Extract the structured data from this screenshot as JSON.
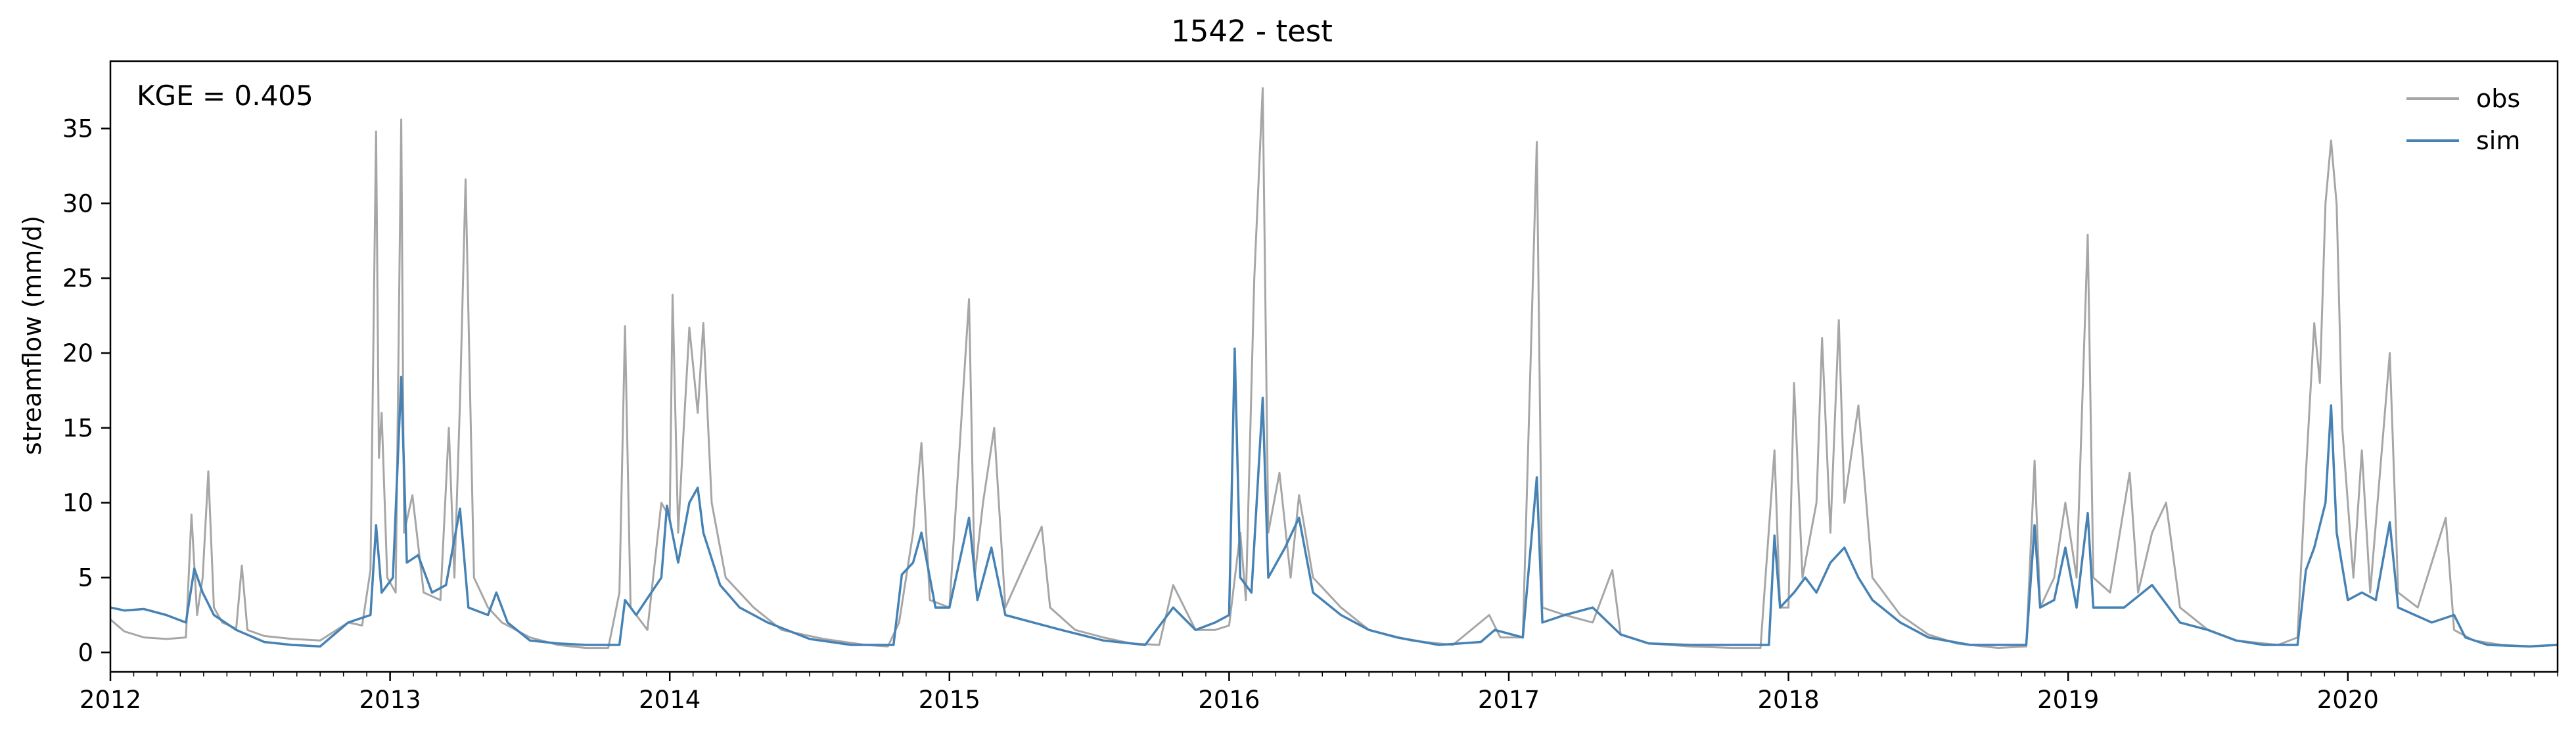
{
  "chart_data": {
    "type": "line",
    "title": "1542 - test",
    "xlabel": "",
    "ylabel": "streamflow (mm/d)",
    "annotation": "KGE = 0.405",
    "xlim": [
      2012.0,
      2020.75
    ],
    "ylim": [
      -1.3,
      39.5
    ],
    "x_ticks": [
      2012,
      2013,
      2014,
      2015,
      2016,
      2017,
      2018,
      2019,
      2020
    ],
    "x_tick_labels": [
      "2012",
      "2013",
      "2014",
      "2015",
      "2016",
      "2017",
      "2018",
      "2019",
      "2020"
    ],
    "y_ticks": [
      0,
      5,
      10,
      15,
      20,
      25,
      30,
      35
    ],
    "y_tick_labels": [
      "0",
      "5",
      "10",
      "15",
      "20",
      "25",
      "30",
      "35"
    ],
    "grid": false,
    "legend_position": "top-right",
    "series": [
      {
        "name": "obs",
        "color": "#a6a6a6",
        "points": [
          [
            2012.0,
            2.2
          ],
          [
            2012.05,
            1.4
          ],
          [
            2012.12,
            1.0
          ],
          [
            2012.2,
            0.9
          ],
          [
            2012.27,
            1.0
          ],
          [
            2012.29,
            9.2
          ],
          [
            2012.31,
            2.5
          ],
          [
            2012.33,
            5.0
          ],
          [
            2012.35,
            12.1
          ],
          [
            2012.37,
            3.0
          ],
          [
            2012.4,
            2.0
          ],
          [
            2012.45,
            1.6
          ],
          [
            2012.47,
            5.8
          ],
          [
            2012.49,
            1.5
          ],
          [
            2012.55,
            1.1
          ],
          [
            2012.65,
            0.9
          ],
          [
            2012.75,
            0.8
          ],
          [
            2012.85,
            2.0
          ],
          [
            2012.9,
            1.8
          ],
          [
            2012.93,
            5.5
          ],
          [
            2012.95,
            34.8
          ],
          [
            2012.96,
            13.0
          ],
          [
            2012.97,
            16.0
          ],
          [
            2012.99,
            5.0
          ],
          [
            2013.02,
            4.0
          ],
          [
            2013.04,
            35.6
          ],
          [
            2013.05,
            8.0
          ],
          [
            2013.08,
            10.5
          ],
          [
            2013.12,
            4.0
          ],
          [
            2013.18,
            3.5
          ],
          [
            2013.21,
            15.0
          ],
          [
            2013.23,
            5.0
          ],
          [
            2013.25,
            16.8
          ],
          [
            2013.27,
            31.6
          ],
          [
            2013.3,
            5.0
          ],
          [
            2013.35,
            3.0
          ],
          [
            2013.4,
            2.0
          ],
          [
            2013.45,
            1.5
          ],
          [
            2013.5,
            1.0
          ],
          [
            2013.6,
            0.5
          ],
          [
            2013.7,
            0.3
          ],
          [
            2013.78,
            0.3
          ],
          [
            2013.82,
            4.0
          ],
          [
            2013.84,
            21.8
          ],
          [
            2013.86,
            3.0
          ],
          [
            2013.92,
            1.5
          ],
          [
            2013.97,
            10.0
          ],
          [
            2014.0,
            9.0
          ],
          [
            2014.01,
            23.9
          ],
          [
            2014.03,
            8.0
          ],
          [
            2014.05,
            15.0
          ],
          [
            2014.07,
            21.7
          ],
          [
            2014.1,
            16.0
          ],
          [
            2014.12,
            22.0
          ],
          [
            2014.15,
            10.0
          ],
          [
            2014.2,
            5.0
          ],
          [
            2014.3,
            3.0
          ],
          [
            2014.4,
            1.5
          ],
          [
            2014.55,
            0.9
          ],
          [
            2014.7,
            0.5
          ],
          [
            2014.78,
            0.4
          ],
          [
            2014.82,
            2.0
          ],
          [
            2014.87,
            8.0
          ],
          [
            2014.9,
            14.0
          ],
          [
            2014.93,
            3.5
          ],
          [
            2015.0,
            3.0
          ],
          [
            2015.07,
            23.6
          ],
          [
            2015.09,
            5.0
          ],
          [
            2015.12,
            10.0
          ],
          [
            2015.16,
            15.0
          ],
          [
            2015.2,
            3.0
          ],
          [
            2015.33,
            8.4
          ],
          [
            2015.36,
            3.0
          ],
          [
            2015.45,
            1.5
          ],
          [
            2015.55,
            1.0
          ],
          [
            2015.65,
            0.6
          ],
          [
            2015.75,
            0.5
          ],
          [
            2015.8,
            4.5
          ],
          [
            2015.88,
            1.5
          ],
          [
            2015.95,
            1.5
          ],
          [
            2016.0,
            1.8
          ],
          [
            2016.04,
            8.0
          ],
          [
            2016.06,
            3.5
          ],
          [
            2016.09,
            25.0
          ],
          [
            2016.12,
            37.7
          ],
          [
            2016.14,
            8.0
          ],
          [
            2016.18,
            12.0
          ],
          [
            2016.22,
            5.0
          ],
          [
            2016.25,
            10.5
          ],
          [
            2016.3,
            5.0
          ],
          [
            2016.4,
            3.0
          ],
          [
            2016.5,
            1.5
          ],
          [
            2016.65,
            0.8
          ],
          [
            2016.8,
            0.5
          ],
          [
            2016.93,
            2.5
          ],
          [
            2016.97,
            1.0
          ],
          [
            2017.05,
            1.0
          ],
          [
            2017.1,
            34.1
          ],
          [
            2017.12,
            3.0
          ],
          [
            2017.2,
            2.5
          ],
          [
            2017.3,
            2.0
          ],
          [
            2017.37,
            5.5
          ],
          [
            2017.4,
            1.2
          ],
          [
            2017.5,
            0.6
          ],
          [
            2017.65,
            0.4
          ],
          [
            2017.8,
            0.3
          ],
          [
            2017.9,
            0.3
          ],
          [
            2017.95,
            13.5
          ],
          [
            2017.97,
            3.0
          ],
          [
            2018.0,
            3.0
          ],
          [
            2018.02,
            18.0
          ],
          [
            2018.05,
            5.0
          ],
          [
            2018.1,
            10.0
          ],
          [
            2018.12,
            21.0
          ],
          [
            2018.15,
            8.0
          ],
          [
            2018.18,
            22.2
          ],
          [
            2018.2,
            10.0
          ],
          [
            2018.25,
            16.5
          ],
          [
            2018.3,
            5.0
          ],
          [
            2018.4,
            2.5
          ],
          [
            2018.5,
            1.2
          ],
          [
            2018.6,
            0.6
          ],
          [
            2018.75,
            0.3
          ],
          [
            2018.85,
            0.4
          ],
          [
            2018.88,
            12.8
          ],
          [
            2018.9,
            3.0
          ],
          [
            2018.95,
            5.0
          ],
          [
            2018.99,
            10.0
          ],
          [
            2019.03,
            5.0
          ],
          [
            2019.07,
            27.9
          ],
          [
            2019.09,
            5.0
          ],
          [
            2019.15,
            4.0
          ],
          [
            2019.22,
            12.0
          ],
          [
            2019.25,
            4.0
          ],
          [
            2019.3,
            8.0
          ],
          [
            2019.35,
            10.0
          ],
          [
            2019.4,
            3.0
          ],
          [
            2019.5,
            1.5
          ],
          [
            2019.6,
            0.8
          ],
          [
            2019.75,
            0.5
          ],
          [
            2019.82,
            1.0
          ],
          [
            2019.85,
            12.0
          ],
          [
            2019.88,
            22.0
          ],
          [
            2019.9,
            18.0
          ],
          [
            2019.92,
            30.0
          ],
          [
            2019.94,
            34.2
          ],
          [
            2019.96,
            29.9
          ],
          [
            2019.98,
            15.0
          ],
          [
            2020.02,
            5.0
          ],
          [
            2020.05,
            13.5
          ],
          [
            2020.08,
            4.0
          ],
          [
            2020.15,
            20.0
          ],
          [
            2020.18,
            4.0
          ],
          [
            2020.25,
            3.0
          ],
          [
            2020.35,
            9.0
          ],
          [
            2020.38,
            1.5
          ],
          [
            2020.45,
            0.8
          ],
          [
            2020.55,
            0.5
          ],
          [
            2020.65,
            0.4
          ],
          [
            2020.75,
            0.5
          ]
        ]
      },
      {
        "name": "sim",
        "color": "#4682b4",
        "points": [
          [
            2012.0,
            3.0
          ],
          [
            2012.05,
            2.8
          ],
          [
            2012.12,
            2.9
          ],
          [
            2012.2,
            2.5
          ],
          [
            2012.27,
            2.0
          ],
          [
            2012.3,
            5.6
          ],
          [
            2012.33,
            4.0
          ],
          [
            2012.37,
            2.5
          ],
          [
            2012.45,
            1.5
          ],
          [
            2012.55,
            0.7
          ],
          [
            2012.65,
            0.5
          ],
          [
            2012.75,
            0.4
          ],
          [
            2012.85,
            2.0
          ],
          [
            2012.93,
            2.5
          ],
          [
            2012.95,
            8.5
          ],
          [
            2012.97,
            4.0
          ],
          [
            2013.01,
            5.0
          ],
          [
            2013.04,
            18.4
          ],
          [
            2013.06,
            6.0
          ],
          [
            2013.1,
            6.5
          ],
          [
            2013.15,
            4.0
          ],
          [
            2013.2,
            4.5
          ],
          [
            2013.25,
            9.6
          ],
          [
            2013.28,
            3.0
          ],
          [
            2013.35,
            2.5
          ],
          [
            2013.38,
            4.0
          ],
          [
            2013.42,
            2.0
          ],
          [
            2013.5,
            0.8
          ],
          [
            2013.6,
            0.6
          ],
          [
            2013.7,
            0.5
          ],
          [
            2013.82,
            0.5
          ],
          [
            2013.84,
            3.5
          ],
          [
            2013.88,
            2.5
          ],
          [
            2013.97,
            5.0
          ],
          [
            2013.99,
            9.8
          ],
          [
            2014.03,
            6.0
          ],
          [
            2014.07,
            10.0
          ],
          [
            2014.1,
            11.0
          ],
          [
            2014.12,
            8.0
          ],
          [
            2014.18,
            4.5
          ],
          [
            2014.25,
            3.0
          ],
          [
            2014.35,
            2.0
          ],
          [
            2014.5,
            0.9
          ],
          [
            2014.65,
            0.5
          ],
          [
            2014.8,
            0.5
          ],
          [
            2014.83,
            5.2
          ],
          [
            2014.87,
            6.0
          ],
          [
            2014.9,
            8.0
          ],
          [
            2014.95,
            3.0
          ],
          [
            2015.0,
            3.0
          ],
          [
            2015.07,
            9.0
          ],
          [
            2015.1,
            3.5
          ],
          [
            2015.15,
            7.0
          ],
          [
            2015.2,
            2.5
          ],
          [
            2015.3,
            2.0
          ],
          [
            2015.4,
            1.5
          ],
          [
            2015.55,
            0.8
          ],
          [
            2015.7,
            0.5
          ],
          [
            2015.8,
            3.0
          ],
          [
            2015.88,
            1.5
          ],
          [
            2015.95,
            2.0
          ],
          [
            2016.0,
            2.5
          ],
          [
            2016.02,
            20.3
          ],
          [
            2016.04,
            5.0
          ],
          [
            2016.08,
            4.0
          ],
          [
            2016.12,
            17.0
          ],
          [
            2016.14,
            5.0
          ],
          [
            2016.2,
            7.0
          ],
          [
            2016.25,
            9.0
          ],
          [
            2016.3,
            4.0
          ],
          [
            2016.4,
            2.5
          ],
          [
            2016.5,
            1.5
          ],
          [
            2016.6,
            1.0
          ],
          [
            2016.75,
            0.5
          ],
          [
            2016.9,
            0.7
          ],
          [
            2016.95,
            1.5
          ],
          [
            2017.05,
            1.0
          ],
          [
            2017.1,
            11.7
          ],
          [
            2017.12,
            2.0
          ],
          [
            2017.2,
            2.5
          ],
          [
            2017.3,
            3.0
          ],
          [
            2017.4,
            1.2
          ],
          [
            2017.5,
            0.6
          ],
          [
            2017.65,
            0.5
          ],
          [
            2017.8,
            0.5
          ],
          [
            2017.93,
            0.5
          ],
          [
            2017.95,
            7.8
          ],
          [
            2017.97,
            3.0
          ],
          [
            2018.02,
            4.0
          ],
          [
            2018.06,
            5.0
          ],
          [
            2018.1,
            4.0
          ],
          [
            2018.15,
            6.0
          ],
          [
            2018.2,
            7.0
          ],
          [
            2018.25,
            5.0
          ],
          [
            2018.3,
            3.5
          ],
          [
            2018.4,
            2.0
          ],
          [
            2018.5,
            1.0
          ],
          [
            2018.65,
            0.5
          ],
          [
            2018.85,
            0.5
          ],
          [
            2018.88,
            8.5
          ],
          [
            2018.9,
            3.0
          ],
          [
            2018.95,
            3.5
          ],
          [
            2018.99,
            7.0
          ],
          [
            2019.03,
            3.0
          ],
          [
            2019.07,
            9.3
          ],
          [
            2019.09,
            3.0
          ],
          [
            2019.2,
            3.0
          ],
          [
            2019.3,
            4.5
          ],
          [
            2019.4,
            2.0
          ],
          [
            2019.5,
            1.5
          ],
          [
            2019.6,
            0.8
          ],
          [
            2019.7,
            0.5
          ],
          [
            2019.82,
            0.5
          ],
          [
            2019.85,
            5.5
          ],
          [
            2019.88,
            7.0
          ],
          [
            2019.92,
            10.0
          ],
          [
            2019.94,
            16.5
          ],
          [
            2019.96,
            8.0
          ],
          [
            2020.0,
            3.5
          ],
          [
            2020.05,
            4.0
          ],
          [
            2020.1,
            3.5
          ],
          [
            2020.15,
            8.7
          ],
          [
            2020.18,
            3.0
          ],
          [
            2020.3,
            2.0
          ],
          [
            2020.38,
            2.5
          ],
          [
            2020.42,
            1.0
          ],
          [
            2020.5,
            0.5
          ],
          [
            2020.65,
            0.4
          ],
          [
            2020.75,
            0.5
          ]
        ]
      }
    ]
  }
}
